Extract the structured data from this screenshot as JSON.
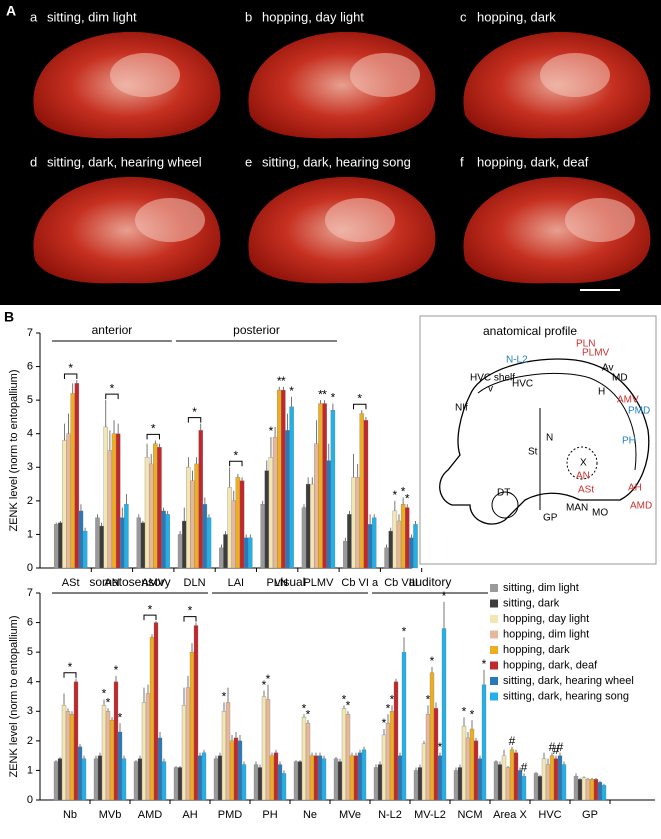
{
  "panel_a": {
    "label": "A",
    "images": [
      {
        "letter": "a",
        "caption": "sitting, dim light"
      },
      {
        "letter": "b",
        "caption": "hopping, day light"
      },
      {
        "letter": "c",
        "caption": "hopping, dark"
      },
      {
        "letter": "d",
        "caption": "sitting, dark, hearing wheel"
      },
      {
        "letter": "e",
        "caption": "sitting, dark, hearing song"
      },
      {
        "letter": "f",
        "caption": "hopping, dark, deaf"
      }
    ]
  },
  "panel_b_label": "B",
  "chart_data": [
    {
      "type": "bar",
      "ylabel": "ZENK level (norm to entopallium)",
      "groups": [
        "anterior",
        "posterior"
      ],
      "categories": [
        "ASt",
        "AN",
        "AMV",
        "DLN",
        "LAI",
        "PLN",
        "PLMV",
        "Cb VI a",
        "Cb VIII"
      ],
      "ylim": [
        0,
        7
      ],
      "yticks": [
        0,
        1,
        2,
        3,
        4,
        5,
        6,
        7
      ],
      "brackets": [
        "*",
        "*",
        "*",
        "*",
        "*",
        null,
        null,
        "*",
        null
      ],
      "series": [
        {
          "color": "#9a9a9a",
          "values": [
            1.3,
            1.5,
            1.5,
            1.0,
            0.6,
            1.9,
            1.8,
            0.8,
            0.6
          ],
          "errors": [
            0.05,
            0.1,
            0.1,
            0.1,
            0.1,
            0.1,
            0.1,
            0.1,
            0.1
          ],
          "marks": [
            null,
            null,
            null,
            null,
            null,
            null,
            null,
            null,
            null
          ]
        },
        {
          "color": "#3c3c3c",
          "values": [
            1.35,
            1.25,
            1.35,
            1.4,
            1.0,
            2.9,
            2.5,
            1.6,
            1.1
          ],
          "errors": [
            0.05,
            0.1,
            0.05,
            0.4,
            0.1,
            0.3,
            0.2,
            0.1,
            0.1
          ],
          "marks": [
            null,
            null,
            null,
            null,
            null,
            null,
            null,
            null,
            null
          ]
        },
        {
          "color": "#f3e6b2",
          "values": [
            3.8,
            4.2,
            3.3,
            3.0,
            2.4,
            3.3,
            2.5,
            2.7,
            1.7
          ],
          "errors": [
            0.5,
            0.8,
            0.4,
            0.3,
            0.6,
            0.6,
            0.2,
            0.7,
            0.3
          ],
          "marks": [
            null,
            null,
            null,
            null,
            null,
            "*",
            null,
            null,
            "*"
          ]
        },
        {
          "color": "#e7b79b",
          "values": [
            4.0,
            3.5,
            3.1,
            2.6,
            2.0,
            3.9,
            3.7,
            2.7,
            1.4
          ],
          "errors": [
            0.6,
            0.6,
            0.3,
            0.3,
            0.3,
            0.3,
            0.7,
            0.4,
            0.2
          ],
          "marks": [
            null,
            null,
            null,
            null,
            null,
            null,
            null,
            null,
            null
          ]
        },
        {
          "color": "#eeae22",
          "values": [
            5.2,
            4.0,
            3.7,
            3.1,
            2.7,
            5.3,
            4.9,
            4.6,
            1.9
          ],
          "errors": [
            0.3,
            0.4,
            0.1,
            0.2,
            0.1,
            0.1,
            0.1,
            0.1,
            0.2
          ],
          "marks": [
            null,
            null,
            null,
            null,
            null,
            "*",
            "*",
            null,
            "*"
          ]
        },
        {
          "color": "#c0282d",
          "values": [
            5.5,
            4.0,
            3.6,
            4.1,
            2.6,
            5.3,
            4.9,
            4.4,
            1.8
          ],
          "errors": [
            0.1,
            0.3,
            0.1,
            0.2,
            0.1,
            0.1,
            0.1,
            0.1,
            0.1
          ],
          "marks": [
            null,
            null,
            null,
            null,
            null,
            "*",
            "*",
            null,
            "*"
          ]
        },
        {
          "color": "#2a78b8",
          "values": [
            1.7,
            1.5,
            1.7,
            1.9,
            0.9,
            4.1,
            3.2,
            1.3,
            0.9
          ],
          "errors": [
            0.2,
            0.3,
            0.1,
            0.2,
            0.1,
            0.5,
            0.5,
            0.3,
            0.1
          ],
          "marks": [
            null,
            null,
            null,
            null,
            null,
            null,
            null,
            null,
            null
          ]
        },
        {
          "color": "#21b1e8",
          "values": [
            1.1,
            1.9,
            1.6,
            1.5,
            0.9,
            4.8,
            4.7,
            1.5,
            1.3
          ],
          "errors": [
            0.1,
            0.3,
            0.1,
            0.1,
            0.1,
            0.3,
            0.2,
            0.1,
            0.1
          ],
          "marks": [
            null,
            null,
            null,
            null,
            null,
            "*",
            "*",
            null,
            null
          ]
        }
      ]
    },
    {
      "type": "bar",
      "ylabel": "ZENK level (norm to entopallium)",
      "groups": [
        "somatosensory",
        "visual",
        "auditory"
      ],
      "categories": [
        "Nb",
        "MVb",
        "AMD",
        "AH",
        "PMD",
        "PH",
        "Ne",
        "MVe",
        "N-L2",
        "MV-L2",
        "NCM",
        "Area X",
        "HVC",
        "GP"
      ],
      "ylim": [
        0,
        7
      ],
      "yticks": [
        0,
        1,
        2,
        3,
        4,
        5,
        6,
        7
      ],
      "legend": "upper right",
      "brackets": [
        "*",
        null,
        "*",
        "*",
        null,
        null,
        null,
        null,
        null,
        null,
        null,
        null,
        null,
        null
      ],
      "series": [
        {
          "name": "sitting, dim light",
          "color": "#9a9a9a",
          "values": [
            1.3,
            1.4,
            1.3,
            1.1,
            1.4,
            1.2,
            1.3,
            1.4,
            1.1,
            1.0,
            1.0,
            1.3,
            0.9,
            0.8
          ],
          "errors": [
            0.05,
            0.1,
            0.05,
            0.05,
            0.1,
            0.1,
            0.05,
            0.05,
            0.1,
            0.1,
            0.1,
            0.05,
            0.05,
            0.1
          ],
          "marks": [
            null,
            null,
            null,
            null,
            null,
            null,
            null,
            null,
            null,
            null,
            null,
            null,
            null,
            null
          ]
        },
        {
          "name": "sitting, dark",
          "color": "#3c3c3c",
          "values": [
            1.4,
            1.5,
            1.4,
            1.1,
            1.5,
            1.1,
            1.3,
            1.3,
            1.2,
            1.1,
            1.1,
            1.2,
            0.8,
            0.7
          ],
          "errors": [
            0.05,
            0.1,
            0.1,
            0.05,
            0.1,
            0.1,
            0.05,
            0.1,
            0.1,
            0.1,
            0.1,
            0.1,
            0.05,
            0.05
          ],
          "marks": [
            null,
            null,
            null,
            null,
            null,
            null,
            null,
            null,
            null,
            null,
            null,
            null,
            null,
            null
          ]
        },
        {
          "name": "hopping, day light",
          "color": "#f3e6b2",
          "values": [
            3.2,
            3.2,
            3.3,
            3.2,
            3.0,
            3.5,
            2.8,
            3.1,
            2.2,
            1.9,
            2.5,
            1.5,
            1.4,
            0.75
          ],
          "errors": [
            0.4,
            0.2,
            0.5,
            0.6,
            0.3,
            0.2,
            0.1,
            0.1,
            0.2,
            0.1,
            0.3,
            0.2,
            0.2,
            0.05
          ],
          "marks": [
            null,
            "*",
            null,
            null,
            "*",
            "*",
            "*",
            "*",
            "*",
            null,
            "*",
            null,
            null,
            null
          ]
        },
        {
          "name": "hopping, dim light",
          "color": "#e7b79b",
          "values": [
            3.0,
            3.0,
            3.6,
            3.8,
            3.3,
            3.4,
            2.6,
            2.9,
            2.6,
            2.9,
            2.1,
            1.1,
            1.2,
            0.7
          ],
          "errors": [
            0.1,
            0.1,
            0.3,
            0.4,
            0.5,
            0.5,
            0.1,
            0.1,
            0.3,
            0.3,
            0.2,
            0.05,
            0.2,
            0.05
          ],
          "marks": [
            null,
            "*",
            null,
            null,
            null,
            "*",
            "*",
            "*",
            "*",
            "*",
            null,
            null,
            null,
            null
          ]
        },
        {
          "name": "hopping, dark",
          "color": "#eeae22",
          "values": [
            2.9,
            2.7,
            5.5,
            5.0,
            2.0,
            1.5,
            1.5,
            1.5,
            3.0,
            4.3,
            2.4,
            1.7,
            1.5,
            0.7
          ],
          "errors": [
            0.1,
            0.1,
            0.1,
            0.3,
            0.2,
            0.1,
            0.1,
            0.1,
            0.2,
            0.2,
            0.3,
            0.1,
            0.1,
            0.05
          ],
          "marks": [
            null,
            null,
            null,
            null,
            null,
            null,
            null,
            null,
            "*",
            "*",
            "*",
            "#",
            "#",
            null
          ]
        },
        {
          "name": "hopping, dark, deaf",
          "color": "#c0282d",
          "values": [
            4.0,
            4.0,
            6.0,
            5.9,
            2.1,
            1.6,
            1.5,
            1.5,
            4.0,
            3.1,
            2.0,
            1.6,
            1.4,
            0.7
          ],
          "errors": [
            0.1,
            0.2,
            0.05,
            0.1,
            0.2,
            0.1,
            0.1,
            0.1,
            0.1,
            0.2,
            0.1,
            0.1,
            0.1,
            0.05
          ],
          "marks": [
            null,
            "*",
            null,
            null,
            null,
            null,
            null,
            null,
            null,
            null,
            null,
            null,
            "#",
            null
          ]
        },
        {
          "name": "sitting, dark, hearing wheel",
          "color": "#2a78b8",
          "values": [
            1.8,
            2.3,
            2.1,
            1.5,
            2.0,
            1.2,
            1.5,
            1.6,
            1.5,
            1.5,
            1.4,
            1.0,
            1.5,
            0.6
          ],
          "errors": [
            0.1,
            0.3,
            0.2,
            0.1,
            0.2,
            0.1,
            0.1,
            0.1,
            0.1,
            0.1,
            0.1,
            0.1,
            0.1,
            0.05
          ],
          "marks": [
            null,
            "*",
            null,
            null,
            null,
            null,
            null,
            null,
            null,
            "*",
            null,
            null,
            "#",
            null
          ]
        },
        {
          "name": "sitting, dark, hearing song",
          "color": "#21b1e8",
          "values": [
            1.4,
            1.4,
            1.3,
            1.6,
            1.2,
            0.9,
            1.4,
            1.7,
            5.0,
            5.8,
            3.9,
            0.8,
            1.2,
            0.5
          ],
          "errors": [
            0.1,
            0.1,
            0.1,
            0.1,
            0.1,
            0.1,
            0.1,
            0.1,
            0.5,
            0.9,
            0.5,
            0.1,
            0.1,
            0.05
          ],
          "marks": [
            null,
            null,
            null,
            null,
            null,
            null,
            null,
            null,
            "*",
            "*",
            "*",
            "#",
            null,
            null
          ]
        }
      ]
    }
  ],
  "anatomy": {
    "title": "anatomical profile",
    "labels": [
      {
        "text": "N-L2",
        "color": "#1f7fc0"
      },
      {
        "text": "PLN",
        "color": "#d0302f"
      },
      {
        "text": "PLMV",
        "color": "#d0302f"
      },
      {
        "text": "HVC shelf",
        "color": "#000"
      },
      {
        "text": "v",
        "color": "#000"
      },
      {
        "text": "HVC",
        "color": "#000"
      },
      {
        "text": "Av",
        "color": "#000"
      },
      {
        "text": "MD",
        "color": "#000"
      },
      {
        "text": "H",
        "color": "#000"
      },
      {
        "text": "AMV",
        "color": "#d0302f"
      },
      {
        "text": "PMD",
        "color": "#1f7fc0"
      },
      {
        "text": "NIf",
        "color": "#000"
      },
      {
        "text": "N",
        "color": "#000"
      },
      {
        "text": "PH",
        "color": "#1f7fc0"
      },
      {
        "text": "St",
        "color": "#000"
      },
      {
        "text": "X",
        "color": "#000"
      },
      {
        "text": "AN",
        "color": "#d0302f"
      },
      {
        "text": "ASt",
        "color": "#d0302f"
      },
      {
        "text": "DT",
        "color": "#000"
      },
      {
        "text": "GP",
        "color": "#000"
      },
      {
        "text": "MAN",
        "color": "#000"
      },
      {
        "text": "MO",
        "color": "#000"
      },
      {
        "text": "AH",
        "color": "#d0302f"
      },
      {
        "text": "AMD",
        "color": "#d0302f"
      }
    ]
  }
}
